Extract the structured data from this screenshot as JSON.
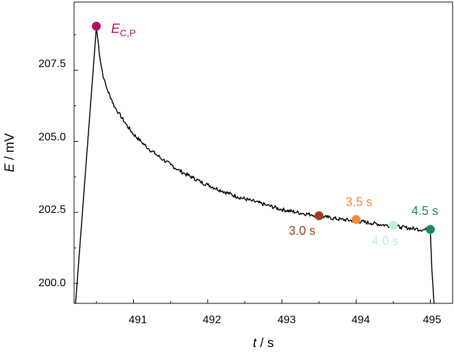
{
  "chart_data": {
    "type": "line",
    "xlabel_var": "t",
    "xlabel_unit": " / s",
    "ylabel_var": "E",
    "ylabel_unit": " / mV",
    "xlim": [
      490.2,
      495.3
    ],
    "ylim": [
      199.3,
      209.9
    ],
    "xticks": [
      491,
      492,
      493,
      494,
      495
    ],
    "xtick_labels": [
      "491",
      "492",
      "493",
      "494",
      "495"
    ],
    "yticks": [
      200.0,
      202.5,
      205.0,
      207.5
    ],
    "ytick_labels": [
      "200.0",
      "202.5",
      "205.0",
      "207.5"
    ],
    "series": [
      {
        "x": [
          490.22,
          490.5,
          490.52,
          490.55,
          490.6,
          490.65,
          490.7,
          490.75,
          490.8,
          490.9,
          491.0,
          491.1,
          491.2,
          491.3,
          491.4,
          491.5,
          491.6,
          491.7,
          491.8,
          491.9,
          492.0,
          492.2,
          492.4,
          492.6,
          492.8,
          493.0,
          493.2,
          493.4,
          493.5,
          493.6,
          493.8,
          494.0,
          494.2,
          494.4,
          494.5,
          494.6,
          494.8,
          494.95,
          495.0,
          495.02,
          495.05
        ],
        "y": [
          199.3,
          209.0,
          208.6,
          207.9,
          207.2,
          206.8,
          206.5,
          206.2,
          206.0,
          205.6,
          205.25,
          205.0,
          204.75,
          204.55,
          204.35,
          204.18,
          204.0,
          203.85,
          203.72,
          203.58,
          203.47,
          203.25,
          203.05,
          202.9,
          202.75,
          202.6,
          202.5,
          202.42,
          202.38,
          202.33,
          202.25,
          202.2,
          202.12,
          202.05,
          202.02,
          201.98,
          201.92,
          201.88,
          201.85,
          200.5,
          199.3
        ]
      }
    ],
    "markers": [
      {
        "x": 490.5,
        "y": 209.05,
        "color": "#b01060"
      },
      {
        "x": 493.5,
        "y": 202.38,
        "color": "#a03e14"
      },
      {
        "x": 494.0,
        "y": 202.25,
        "color": "#f58a3c"
      },
      {
        "x": 494.5,
        "y": 202.05,
        "color": "#b8f5d0"
      },
      {
        "x": 495.0,
        "y": 201.9,
        "color": "#1a8a5a"
      }
    ],
    "annotations": {
      "ecp_main": "E",
      "ecp_sub": "C,P",
      "s30": "3.0 s",
      "s35": "3.5 s",
      "s40": "4.0 s",
      "s45": "4.5 s"
    }
  }
}
